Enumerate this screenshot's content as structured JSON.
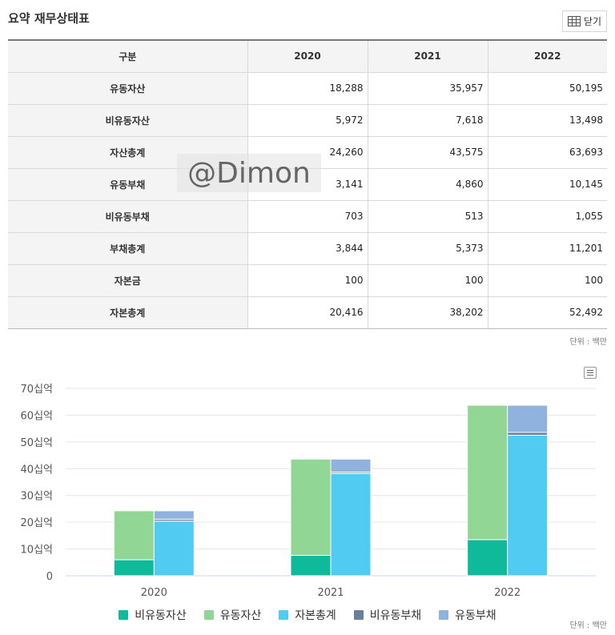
{
  "header": {
    "title": "요약 재무상태표",
    "close_label": "닫기"
  },
  "table": {
    "columns": [
      "구분",
      "2020",
      "2021",
      "2022"
    ],
    "rows": [
      {
        "label": "유동자산",
        "values": [
          "18,288",
          "35,957",
          "50,195"
        ]
      },
      {
        "label": "비유동자산",
        "values": [
          "5,972",
          "7,618",
          "13,498"
        ]
      },
      {
        "label": "자산총계",
        "values": [
          "24,260",
          "43,575",
          "63,693"
        ]
      },
      {
        "label": "유동부채",
        "values": [
          "3,141",
          "4,860",
          "10,145"
        ]
      },
      {
        "label": "비유동부채",
        "values": [
          "703",
          "513",
          "1,055"
        ]
      },
      {
        "label": "부채총계",
        "values": [
          "3,844",
          "5,373",
          "11,201"
        ]
      },
      {
        "label": "자본금",
        "values": [
          "100",
          "100",
          "100"
        ]
      },
      {
        "label": "자본총계",
        "values": [
          "20,416",
          "38,202",
          "52,492"
        ]
      }
    ],
    "unit": "단위 : 백만"
  },
  "watermark": "@Dimon",
  "chart_unit": "단위 : 백만",
  "chart_data": {
    "type": "bar",
    "stacked": true,
    "categories": [
      "2020",
      "2021",
      "2022"
    ],
    "y_ticks": [
      "0",
      "10십억",
      "20십억",
      "30십억",
      "40십억",
      "50십억",
      "60십억",
      "70십억"
    ],
    "ylim": [
      0,
      70000
    ],
    "grid": true,
    "legend_position": "bottom",
    "series": [
      {
        "name": "비유동자산",
        "stack": "assets",
        "color": "#0fba9b",
        "values": [
          5972,
          7618,
          13498
        ]
      },
      {
        "name": "유동자산",
        "stack": "assets",
        "color": "#92d695",
        "values": [
          18288,
          35957,
          50195
        ]
      },
      {
        "name": "자본총계",
        "stack": "liabilities",
        "color": "#52cbf3",
        "values": [
          20416,
          38202,
          52492
        ]
      },
      {
        "name": "비유동부채",
        "stack": "liabilities",
        "color": "#6a7f99",
        "values": [
          703,
          513,
          1055
        ]
      },
      {
        "name": "유동부채",
        "stack": "liabilities",
        "color": "#8fb3de",
        "values": [
          3141,
          4860,
          10145
        ]
      }
    ]
  }
}
